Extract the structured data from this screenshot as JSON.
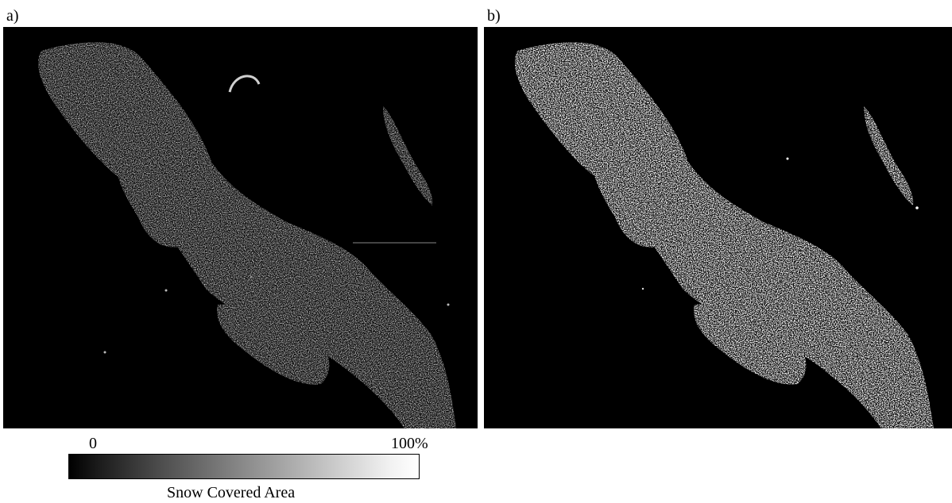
{
  "panels": [
    {
      "label": "a)"
    },
    {
      "label": "b)"
    }
  ],
  "colorbar": {
    "min_label": "0",
    "max_label": "100%",
    "title": "Snow Covered Area",
    "colors": [
      "#000000",
      "#ffffff"
    ]
  }
}
